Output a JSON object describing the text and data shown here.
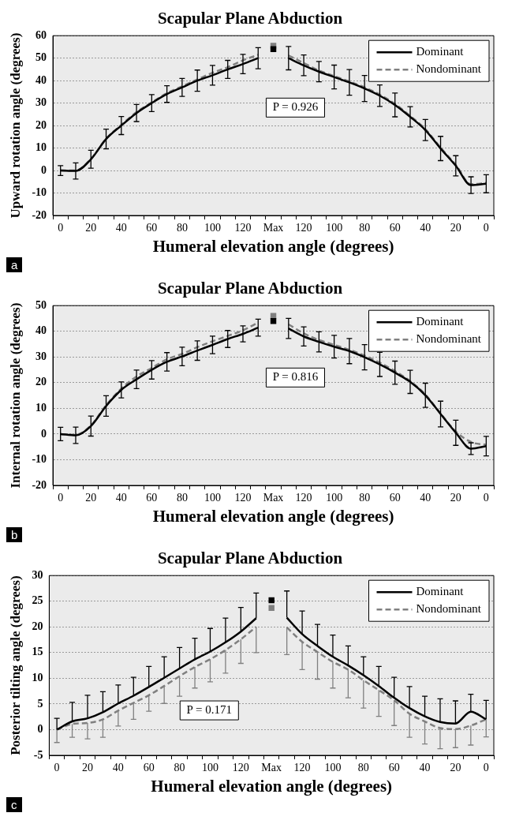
{
  "chart_data": [
    {
      "type": "line",
      "title": "Scapular Plane Abduction",
      "xlabel": "Humeral elevation angle (degrees)",
      "ylabel": "Upward rotation angle (degrees)",
      "categories": [
        "0",
        null,
        "20",
        null,
        "40",
        null,
        "60",
        null,
        "80",
        null,
        "100",
        null,
        "120",
        null,
        "Max",
        null,
        "120",
        null,
        "100",
        null,
        "80",
        null,
        "60",
        null,
        "40",
        null,
        "20",
        null,
        "0"
      ],
      "ylim": [
        -20,
        60
      ],
      "yticks": [
        -20,
        -10,
        0,
        10,
        20,
        30,
        40,
        50,
        60
      ],
      "grid": "y",
      "legend": "top right",
      "annotations": [
        "P = 0.926",
        "a"
      ],
      "series": [
        {
          "name": "Dominant",
          "color": "#000000",
          "line_style": "solid",
          "marker": "none",
          "values": [
            0,
            -0.2,
            5,
            14,
            20,
            25.6,
            30,
            34,
            37,
            40,
            42.4,
            45,
            47.4,
            50,
            null,
            50,
            46.8,
            44,
            41.6,
            39.2,
            36.5,
            33.3,
            29.2,
            23.9,
            18,
            9.8,
            2.1,
            -6.5,
            -5.9
          ],
          "errors": [
            2.2,
            3.6,
            4,
            4.4,
            4,
            3.8,
            3.8,
            3.7,
            4,
            4.7,
            4.4,
            4,
            4.3,
            4.7,
            null,
            5.2,
            4.6,
            4.5,
            5.3,
            5.7,
            5.8,
            4.8,
            5.3,
            4.5,
            4.7,
            5.4,
            4.5,
            3.7,
            4
          ]
        },
        {
          "name": "Nondominant",
          "color": "#808080",
          "line_style": "dashed",
          "marker": "none",
          "values": [
            0,
            0,
            5.2,
            14.2,
            20.3,
            26,
            30.3,
            34.4,
            37.5,
            40.5,
            43.5,
            46,
            49,
            51.5,
            null,
            51.2,
            47.8,
            44.5,
            42,
            39.6,
            37,
            33.8,
            29.6,
            24.3,
            18.4,
            10.2,
            2.5,
            -6.1,
            -5.5
          ]
        },
        {
          "type": "scatter",
          "color": "#000000",
          "marker": "square",
          "x": [
            "Max"
          ],
          "values": [
            54
          ]
        },
        {
          "type": "scatter",
          "color": "#808080",
          "marker": "square",
          "x": [
            "Max"
          ],
          "values": [
            55.5
          ]
        }
      ]
    },
    {
      "type": "line",
      "title": "Scapular Plane Abduction",
      "xlabel": "Humeral elevation angle (degrees)",
      "ylabel": "Internal rotation angle (degrees)",
      "categories": [
        "0",
        null,
        "20",
        null,
        "40",
        null,
        "60",
        null,
        "80",
        null,
        "100",
        null,
        "120",
        null,
        "Max",
        null,
        "120",
        null,
        "100",
        null,
        "80",
        null,
        "60",
        null,
        "40",
        null,
        "20",
        null,
        "0"
      ],
      "ylim": [
        -20,
        50
      ],
      "yticks": [
        -20,
        -10,
        0,
        10,
        20,
        30,
        40,
        50
      ],
      "grid": "y",
      "legend": "top right",
      "annotations": [
        "P = 0.816",
        "b"
      ],
      "series": [
        {
          "name": "Dominant",
          "color": "#000000",
          "line_style": "solid",
          "marker": "none",
          "values": [
            0,
            -0.5,
            3.1,
            10.9,
            17.2,
            21.3,
            25,
            28.1,
            30.2,
            32.5,
            34.7,
            37,
            39,
            41.4,
            null,
            41.1,
            38,
            35.9,
            34,
            32.3,
            29.9,
            27.1,
            23.9,
            20.3,
            15.1,
            7.8,
            0.5,
            -5.7,
            -4.7
          ],
          "errors": [
            2.6,
            3.2,
            3.9,
            4,
            3.1,
            3.6,
            3.6,
            3.6,
            3.6,
            3.8,
            3.4,
            3.3,
            3.1,
            3.3,
            null,
            3.9,
            3.7,
            3.9,
            4.4,
            4.9,
            4.9,
            4.7,
            4.5,
            4.5,
            4.7,
            5,
            4.9,
            2.3,
            3.8
          ]
        },
        {
          "name": "Nondominant",
          "color": "#808080",
          "line_style": "dashed",
          "marker": "none",
          "values": [
            0,
            -0.3,
            3.4,
            11.2,
            17.7,
            22.4,
            25.7,
            29.1,
            31.2,
            33.8,
            36.1,
            38.2,
            40.4,
            43.4,
            null,
            42.7,
            39.2,
            36.6,
            34.7,
            32.8,
            30.5,
            27.8,
            24.5,
            20.6,
            15.4,
            8,
            1,
            -3.1,
            -4.2
          ]
        },
        {
          "type": "scatter",
          "color": "#000000",
          "marker": "square",
          "x": [
            "Max"
          ],
          "values": [
            44
          ]
        },
        {
          "type": "scatter",
          "color": "#808080",
          "marker": "square",
          "x": [
            "Max"
          ],
          "values": [
            46
          ]
        }
      ]
    },
    {
      "type": "line",
      "title": "Scapular Plane Abduction",
      "xlabel": "Humeral elevation angle (degrees)",
      "ylabel": "Posterior tilting angle (degrees)",
      "categories": [
        "0",
        null,
        "20",
        null,
        "40",
        null,
        "60",
        null,
        "80",
        null,
        "100",
        null,
        "120",
        null,
        "Max",
        null,
        "120",
        null,
        "100",
        null,
        "80",
        null,
        "60",
        null,
        "40",
        null,
        "20",
        null,
        "0"
      ],
      "ylim": [
        -5,
        30
      ],
      "yticks": [
        -5,
        0,
        5,
        10,
        15,
        20,
        25,
        30
      ],
      "grid": "y",
      "legend": "top right",
      "annotations": [
        "P = 0.171",
        "c"
      ],
      "series": [
        {
          "name": "Dominant",
          "color": "#000000",
          "line_style": "solid",
          "marker": "none",
          "values": [
            0,
            1.6,
            2.2,
            3.4,
            5.1,
            6.6,
            8.3,
            10.1,
            11.9,
            13.7,
            15.2,
            17,
            19.1,
            21.7,
            null,
            21.8,
            18.6,
            16.3,
            14.2,
            12.5,
            10.6,
            8.5,
            6.2,
            4.2,
            2.6,
            1.5,
            1.2,
            3.5,
            2
          ],
          "errors": [
            [
              0,
              2.2
            ],
            [
              1.6,
              5.3
            ],
            [
              2.2,
              6.7
            ],
            [
              3.4,
              7.4
            ],
            [
              5.1,
              8.7
            ],
            [
              6.6,
              10.2
            ],
            [
              8.3,
              12.3
            ],
            [
              10.1,
              14.2
            ],
            [
              11.9,
              16
            ],
            [
              13.7,
              17.8
            ],
            [
              15.2,
              19.7
            ],
            [
              17,
              21.7
            ],
            [
              19.1,
              23.8
            ],
            [
              21.7,
              26.6
            ],
            null,
            [
              21.8,
              27
            ],
            [
              18.6,
              23.1
            ],
            [
              16.3,
              20.5
            ],
            [
              14.2,
              18.4
            ],
            [
              12.5,
              16.3
            ],
            [
              10.6,
              14.2
            ],
            [
              8.5,
              12.3
            ],
            [
              6.2,
              10.2
            ],
            [
              4.2,
              8.4
            ],
            [
              2.6,
              6.5
            ],
            [
              1.5,
              6
            ],
            [
              1.2,
              5.6
            ],
            [
              3.5,
              6.9
            ],
            [
              2,
              5.7
            ]
          ]
        },
        {
          "name": "Nondominant",
          "color": "#808080",
          "line_style": "dashed",
          "marker": "none",
          "values": [
            0,
            1.1,
            1.3,
            2,
            3.7,
            5.2,
            6.7,
            8.5,
            10.4,
            12.2,
            13.7,
            15.5,
            17.6,
            20,
            null,
            19.9,
            17.1,
            15.1,
            13.2,
            11.7,
            9.6,
            7.7,
            5.7,
            3.1,
            1.6,
            0.3,
            0.1,
            0.8,
            2
          ],
          "errors": [
            [
              -2.5,
              0
            ],
            [
              -1.5,
              1.1
            ],
            [
              -1.8,
              1.3
            ],
            [
              -1.5,
              2
            ],
            [
              0.7,
              3.7
            ],
            [
              2,
              5.2
            ],
            [
              3.6,
              6.7
            ],
            [
              5.1,
              8.5
            ],
            [
              6.5,
              10.4
            ],
            [
              8.1,
              12.2
            ],
            [
              9.3,
              13.7
            ],
            [
              11,
              15.5
            ],
            [
              12.9,
              17.6
            ],
            [
              15,
              20
            ],
            null,
            [
              14.6,
              19.9
            ],
            [
              11.7,
              17.1
            ],
            [
              9.8,
              15.1
            ],
            [
              8.1,
              13.2
            ],
            [
              6.2,
              11.7
            ],
            [
              4.2,
              9.6
            ],
            [
              2.6,
              7.7
            ],
            [
              0.8,
              5.7
            ],
            [
              -1.5,
              3.1
            ],
            [
              -2.8,
              1.6
            ],
            [
              -3.7,
              0.3
            ],
            [
              -3.5,
              0.1
            ],
            [
              -3,
              0.8
            ],
            [
              -1.4,
              2
            ]
          ]
        },
        {
          "type": "scatter",
          "color": "#000000",
          "marker": "square",
          "x": [
            "Max"
          ],
          "values": [
            25.2
          ]
        },
        {
          "type": "scatter",
          "color": "#808080",
          "marker": "square",
          "x": [
            "Max"
          ],
          "values": [
            23.7
          ]
        }
      ]
    }
  ]
}
